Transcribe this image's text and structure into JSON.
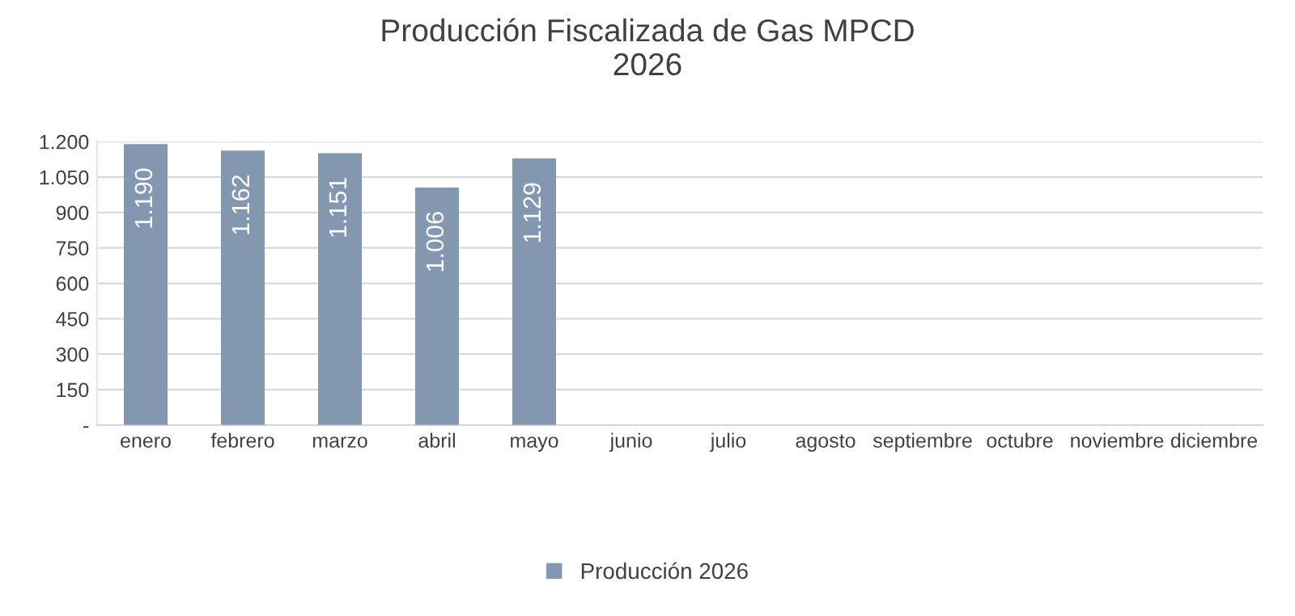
{
  "chart_data": {
    "type": "bar",
    "title": "Producción Fiscalizada de Gas MPCD\n2026",
    "categories": [
      "enero",
      "febrero",
      "marzo",
      "abril",
      "mayo",
      "junio",
      "julio",
      "agosto",
      "septiembre",
      "octubre",
      "noviembre",
      "diciembre"
    ],
    "series": [
      {
        "name": "Producción 2026",
        "color": "#8497b0",
        "values": [
          1190,
          1162,
          1151,
          1006,
          1129,
          null,
          null,
          null,
          null,
          null,
          null,
          null
        ],
        "value_labels": [
          "1.190",
          "1.162",
          "1.151",
          "1.006",
          "1.129",
          null,
          null,
          null,
          null,
          null,
          null,
          null
        ]
      }
    ],
    "ylim": [
      0,
      1200
    ],
    "yticks": [
      {
        "value": 0,
        "label": "-"
      },
      {
        "value": 150,
        "label": "150"
      },
      {
        "value": 300,
        "label": "300"
      },
      {
        "value": 450,
        "label": "450"
      },
      {
        "value": 600,
        "label": "600"
      },
      {
        "value": 750,
        "label": "750"
      },
      {
        "value": 900,
        "label": "900"
      },
      {
        "value": 1050,
        "label": "1.050"
      },
      {
        "value": 1200,
        "label": "1.200"
      }
    ],
    "grid": "y",
    "legend": "bottom"
  }
}
